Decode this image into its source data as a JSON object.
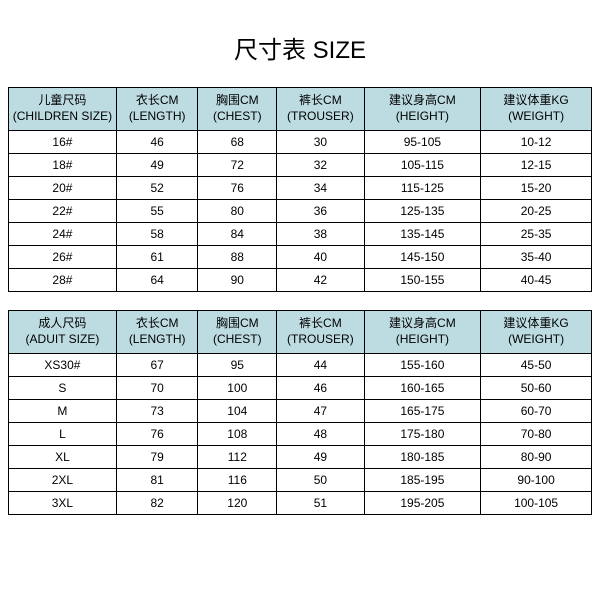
{
  "title": "尺寸表 SIZE",
  "header_bg": "#bddce2",
  "children": {
    "columns": [
      {
        "l1": "儿童尺码",
        "l2": "(CHILDREN SIZE)"
      },
      {
        "l1": "衣长CM",
        "l2": "(LENGTH)"
      },
      {
        "l1": "胸围CM",
        "l2": "(CHEST)"
      },
      {
        "l1": "裤长CM",
        "l2": "(TROUSER)"
      },
      {
        "l1": "建议身高CM",
        "l2": "(HEIGHT)"
      },
      {
        "l1": "建议体重KG",
        "l2": "(WEIGHT)"
      }
    ],
    "rows": [
      [
        "16#",
        "46",
        "68",
        "30",
        "95-105",
        "10-12"
      ],
      [
        "18#",
        "49",
        "72",
        "32",
        "105-115",
        "12-15"
      ],
      [
        "20#",
        "52",
        "76",
        "34",
        "115-125",
        "15-20"
      ],
      [
        "22#",
        "55",
        "80",
        "36",
        "125-135",
        "20-25"
      ],
      [
        "24#",
        "58",
        "84",
        "38",
        "135-145",
        "25-35"
      ],
      [
        "26#",
        "61",
        "88",
        "40",
        "145-150",
        "35-40"
      ],
      [
        "28#",
        "64",
        "90",
        "42",
        "150-155",
        "40-45"
      ]
    ]
  },
  "adult": {
    "columns": [
      {
        "l1": "成人尺码",
        "l2": "(ADUIT SIZE)"
      },
      {
        "l1": "衣长CM",
        "l2": "(LENGTH)"
      },
      {
        "l1": "胸围CM",
        "l2": "(CHEST)"
      },
      {
        "l1": "裤长CM",
        "l2": "(TROUSER)"
      },
      {
        "l1": "建议身高CM",
        "l2": "(HEIGHT)"
      },
      {
        "l1": "建议体重KG",
        "l2": "(WEIGHT)"
      }
    ],
    "rows": [
      [
        "XS30#",
        "67",
        "95",
        "44",
        "155-160",
        "45-50"
      ],
      [
        "S",
        "70",
        "100",
        "46",
        "160-165",
        "50-60"
      ],
      [
        "M",
        "73",
        "104",
        "47",
        "165-175",
        "60-70"
      ],
      [
        "L",
        "76",
        "108",
        "48",
        "175-180",
        "70-80"
      ],
      [
        "XL",
        "79",
        "112",
        "49",
        "180-185",
        "80-90"
      ],
      [
        "2XL",
        "81",
        "116",
        "50",
        "185-195",
        "90-100"
      ],
      [
        "3XL",
        "82",
        "120",
        "51",
        "195-205",
        "100-105"
      ]
    ]
  }
}
